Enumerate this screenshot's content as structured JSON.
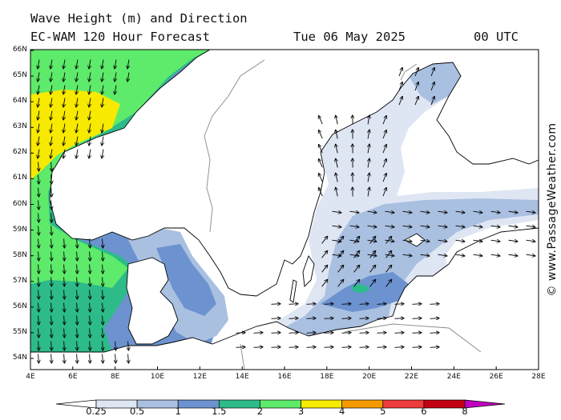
{
  "title": {
    "line1": "Wave Height (m) and Direction",
    "line2": "EC-WAM 120 Hour Forecast",
    "date": "Tue 06 May 2025",
    "time": "00 UTC"
  },
  "credit": "© www.PassageWeather.com",
  "latitudes": [
    "66N",
    "65N",
    "64N",
    "63N",
    "62N",
    "61N",
    "60N",
    "59N",
    "58N",
    "57N",
    "56N",
    "55N",
    "54N"
  ],
  "longitudes": [
    "4E",
    "6E",
    "8E",
    "10E",
    "12E",
    "14E",
    "16E",
    "18E",
    "20E",
    "22E",
    "24E",
    "26E",
    "28E"
  ],
  "legend": {
    "labels": [
      "0.25",
      "0.5",
      "1",
      "1.5",
      "2",
      "3",
      "4",
      "5",
      "6",
      "8"
    ],
    "colors": [
      "#ffffff",
      "#dfe6f3",
      "#a9c0e1",
      "#6c93cf",
      "#2dbb8a",
      "#5eea6a",
      "#f7ea00",
      "#f59a00",
      "#ee3b3b",
      "#c10012",
      "#c000c0"
    ]
  },
  "colors": {
    "land": "#ffffff",
    "coast": "#000000",
    "border": "#888888",
    "wave_025_05": "#dfe6f3",
    "wave_05_1": "#a9c0e1",
    "wave_1_15": "#6c93cf",
    "wave_15_2": "#2dbb8a",
    "wave_2_3": "#5eea6a",
    "wave_3_4": "#f7ea00"
  }
}
